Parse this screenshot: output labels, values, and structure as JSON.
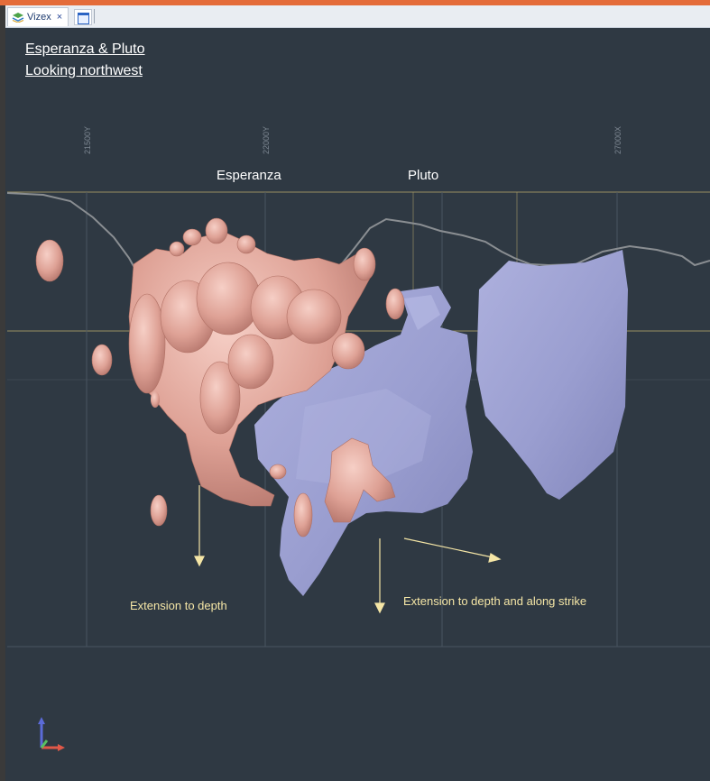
{
  "window": {
    "tab_label": "Vizex",
    "close_glyph": "×",
    "tab_icon": "vizex-layers-icon",
    "second_tab_icon": "window-icon"
  },
  "view": {
    "title_line1": "Esperanza & Pluto",
    "title_line2": "Looking northwest",
    "grid_labels": [
      "21500Y",
      "22000Y",
      "27000X"
    ],
    "deposit_labels": [
      "Esperanza",
      "Pluto"
    ],
    "annotation_depth": "Extension to depth",
    "annotation_depth_strike": "Extension to depth and along strike",
    "axis_icon": "xyz-axis-triad-icon"
  },
  "colors": {
    "background": "#2f3943",
    "grid_line": "#a49a66",
    "esperanza_body": "#e2a79d",
    "pluto_body": "#9fa3d4",
    "topography": "#8a8e92",
    "arrow": "#f5e6a6"
  }
}
